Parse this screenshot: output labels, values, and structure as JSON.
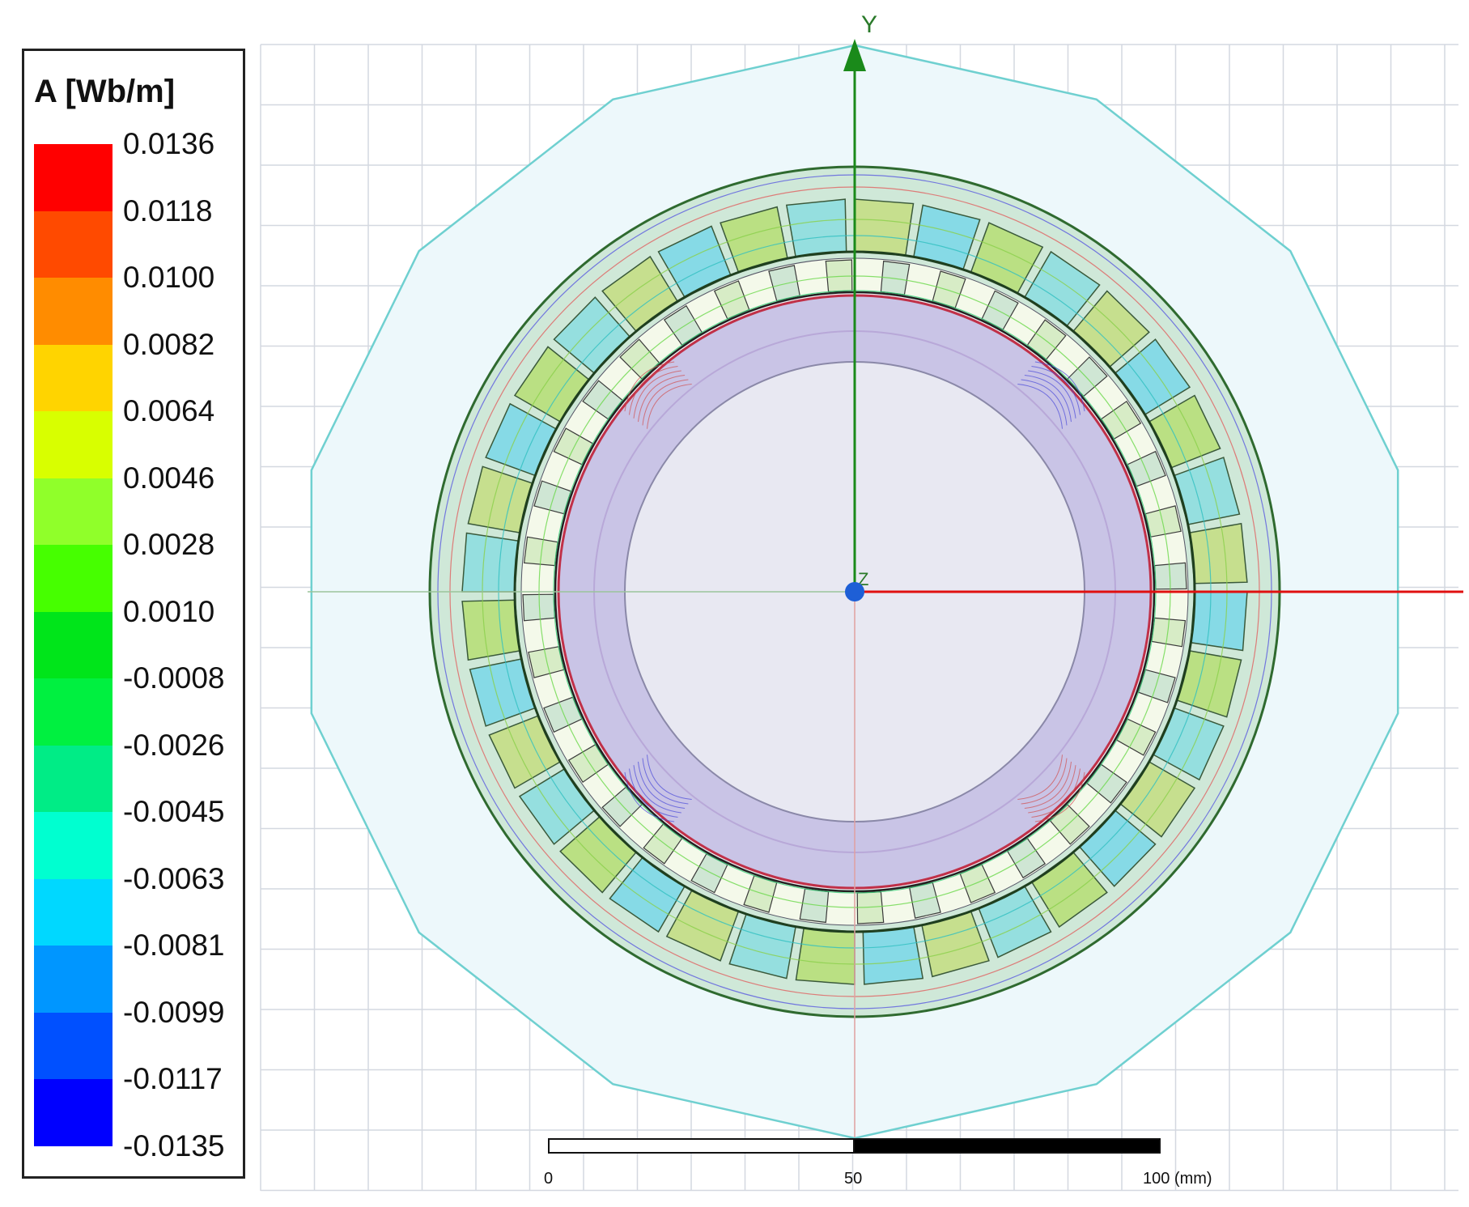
{
  "legend": {
    "title": "A [Wb/m]",
    "levels": [
      {
        "label": "0.0136",
        "color": "#ff0000"
      },
      {
        "label": "0.0118",
        "color": "#ff4a00"
      },
      {
        "label": "0.0100",
        "color": "#ff8c00"
      },
      {
        "label": "0.0082",
        "color": "#ffd400"
      },
      {
        "label": "0.0064",
        "color": "#d8ff00"
      },
      {
        "label": "0.0046",
        "color": "#90ff2a"
      },
      {
        "label": "0.0028",
        "color": "#46ff00"
      },
      {
        "label": "0.0010",
        "color": "#00e51a"
      },
      {
        "label": "-0.0008",
        "color": "#00f040"
      },
      {
        "label": "-0.0026",
        "color": "#00ec86"
      },
      {
        "label": "-0.0045",
        "color": "#00ffd0"
      },
      {
        "label": "-0.0063",
        "color": "#00d8ff"
      },
      {
        "label": "-0.0081",
        "color": "#0096ff"
      },
      {
        "label": "-0.0099",
        "color": "#0050ff"
      },
      {
        "label": "-0.0117",
        "color": "#0000ff"
      },
      {
        "label": "-0.0135",
        "color": null
      }
    ]
  },
  "axes": {
    "y_label": "Y",
    "z_label": "Z",
    "x_color": "#e01010",
    "y_color": "#1a8a1a",
    "origin_color": "#1e5fd6"
  },
  "scale_bar": {
    "labels": [
      "0",
      "50",
      "100 (mm)"
    ]
  },
  "colors": {
    "grid": "#d4d8e0",
    "boundary": "#6fd0d0",
    "region_fill": "#edf8fb",
    "stator_outer": "#2f6a2f",
    "rotor_ring": "#b8a8d8",
    "bore": "#e8e8f2",
    "magnet_hot": "#d05050",
    "magnet_cold": "#4a4ad8"
  }
}
